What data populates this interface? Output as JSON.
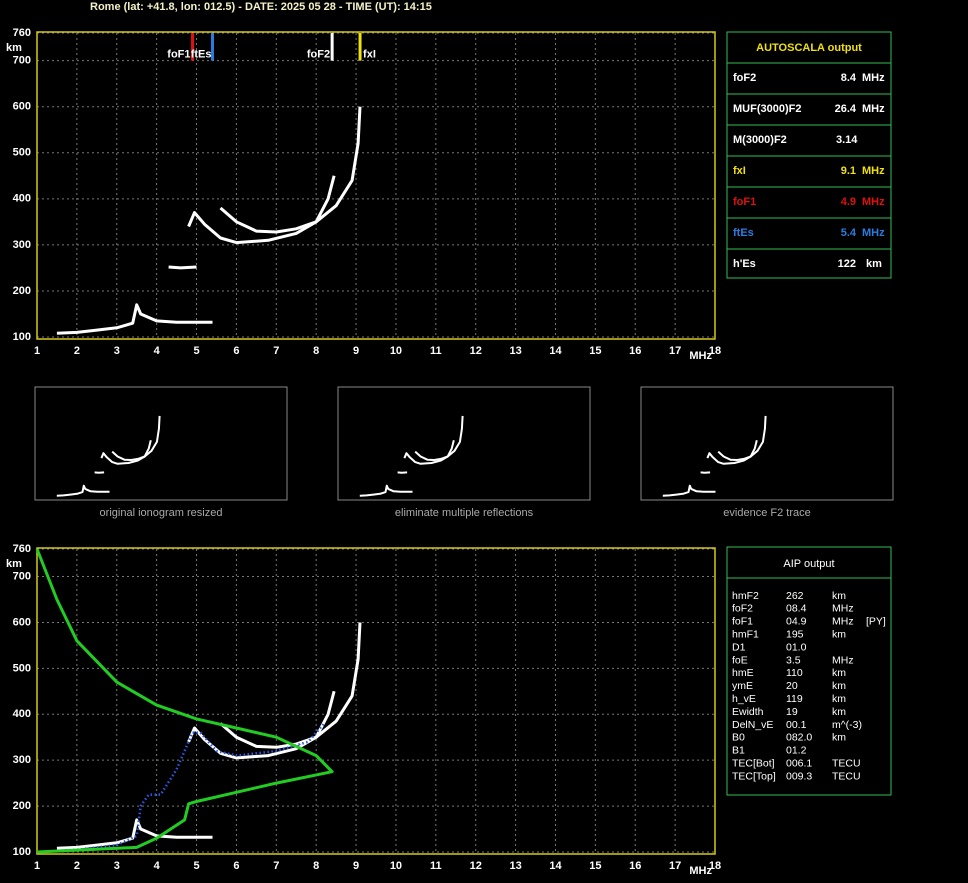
{
  "header": {
    "title": "Rome (lat: +41.8, lon: 012.5) - DATE: 2025 05 28 - TIME (UT): 14:15"
  },
  "chart_data": [
    {
      "type": "line",
      "xlim": [
        1,
        18
      ],
      "ylim": [
        100,
        760
      ],
      "xticks": [
        1,
        2,
        3,
        4,
        5,
        6,
        7,
        8,
        9,
        10,
        11,
        12,
        13,
        14,
        15,
        16,
        17,
        18
      ],
      "yticks": [
        100,
        200,
        300,
        400,
        500,
        600,
        700,
        760
      ],
      "xlabel": "MHz",
      "ylabel": "km",
      "grid": true,
      "frame_color": "#d8c81c",
      "markers": [
        {
          "label": "foF1",
          "value": 4.9,
          "color": "#e01010",
          "label_side": "left"
        },
        {
          "label": "ftEs",
          "value": 5.4,
          "color": "#2a7de0",
          "label_side": "left-of-next"
        },
        {
          "label": "foF2",
          "value": 8.4,
          "color": "#ffffff",
          "label_side": "left"
        },
        {
          "label": "fxI",
          "value": 9.1,
          "color": "#f0e010",
          "label_side": "right"
        }
      ],
      "series": [
        {
          "color": "#ffffff",
          "x": [
            4.8,
            4.95,
            5.2,
            5.6,
            6,
            6.8,
            7.5,
            8,
            8.3,
            8.45
          ],
          "values": [
            340,
            370,
            345,
            315,
            305,
            310,
            325,
            350,
            400,
            450
          ]
        },
        {
          "color": "#ffffff",
          "x": [
            5.6,
            6,
            6.5,
            7,
            7.5,
            8,
            8.5,
            8.9,
            9.05,
            9.1
          ],
          "values": [
            380,
            350,
            330,
            328,
            335,
            350,
            385,
            440,
            520,
            600
          ]
        },
        {
          "color": "#ffffff",
          "x": [
            1.5,
            2,
            2.5,
            3,
            3.4,
            3.5,
            3.6,
            4,
            4.5,
            5.4
          ],
          "values": [
            108,
            110,
            115,
            120,
            130,
            170,
            150,
            135,
            132,
            132
          ]
        },
        {
          "color": "#ffffff",
          "x": [
            4.3,
            4.6,
            5
          ],
          "values": [
            252,
            250,
            252
          ]
        }
      ]
    },
    {
      "type": "line",
      "xlim": [
        1,
        18
      ],
      "ylim": [
        100,
        760
      ],
      "xticks": [
        1,
        2,
        3,
        4,
        5,
        6,
        7,
        8,
        9,
        10,
        11,
        12,
        13,
        14,
        15,
        16,
        17,
        18
      ],
      "yticks": [
        100,
        200,
        300,
        400,
        500,
        600,
        700,
        760
      ],
      "xlabel": "MHz",
      "ylabel": "km",
      "grid": true,
      "frame_color": "#d8c81c",
      "series": [
        {
          "color": "#ffffff",
          "x": [
            4.8,
            4.95,
            5.2,
            5.6,
            6,
            6.8,
            7.5,
            8,
            8.3,
            8.45
          ],
          "values": [
            340,
            370,
            345,
            315,
            305,
            310,
            325,
            350,
            400,
            450
          ]
        },
        {
          "color": "#ffffff",
          "x": [
            5.6,
            6,
            6.5,
            7,
            7.5,
            8,
            8.5,
            8.9,
            9.05,
            9.1
          ],
          "values": [
            380,
            350,
            330,
            328,
            335,
            350,
            385,
            440,
            520,
            600
          ]
        },
        {
          "color": "#ffffff",
          "x": [
            1.5,
            2,
            2.5,
            3,
            3.4,
            3.5,
            3.6,
            4,
            4.5,
            5.4
          ],
          "values": [
            108,
            110,
            115,
            120,
            130,
            170,
            150,
            135,
            132,
            132
          ]
        },
        {
          "color": "#2a5be8",
          "style": "dotted",
          "x": [
            1,
            2,
            3,
            3.5,
            3.6,
            3.8,
            4.1,
            4.5,
            4.9,
            5.1,
            5.5,
            6,
            7,
            7.8,
            8.2
          ],
          "values": [
            100,
            105,
            115,
            135,
            200,
            225,
            225,
            280,
            360,
            360,
            320,
            310,
            320,
            340,
            380
          ]
        },
        {
          "color": "#22cc22",
          "x": [
            1,
            1.5,
            2,
            3,
            4,
            5,
            6,
            7,
            8,
            8.4,
            7,
            6,
            5,
            4.8,
            4.7,
            4,
            3.5,
            1
          ],
          "values": [
            760,
            650,
            560,
            470,
            420,
            390,
            370,
            350,
            310,
            275,
            250,
            230,
            210,
            205,
            170,
            130,
            110,
            100
          ]
        }
      ]
    }
  ],
  "autoscala": {
    "title": "AUTOSCALA output",
    "rows": [
      {
        "label": "foF2",
        "value": "8.4",
        "unit": "MHz",
        "color": "#ffffff"
      },
      {
        "label": "MUF(3000)F2",
        "value": "26.4",
        "unit": "MHz",
        "color": "#ffffff"
      },
      {
        "label": "M(3000)F2",
        "value": "3.14",
        "color": "#ffffff"
      },
      {
        "label": "fxI",
        "value": "9.1",
        "unit": "MHz",
        "color": "#f0e010"
      },
      {
        "label": "foF1",
        "value": "4.9",
        "unit": "MHz",
        "color": "#e01010"
      },
      {
        "label": "ftEs",
        "value": "5.4",
        "unit": "MHz",
        "color": "#2a7de0"
      },
      {
        "label": "h'Es",
        "value": "122",
        "unit": "km",
        "color": "#ffffff"
      }
    ]
  },
  "thumbnails": [
    "original ionogram resized",
    "eliminate multiple reflections",
    "evidence F2 trace"
  ],
  "aip": {
    "title": "AIP output",
    "rows": [
      [
        "hmF2",
        "262",
        "km"
      ],
      [
        "foF2",
        "08.4",
        "MHz"
      ],
      [
        "foF1",
        "04.9",
        "MHz",
        "[PY]"
      ],
      [
        "hmF1",
        "195",
        "km"
      ],
      [
        "D1",
        "01.0"
      ],
      [
        "foE",
        "3.5",
        "MHz"
      ],
      [
        "hmE",
        "110",
        "km"
      ],
      [
        "ymE",
        "20",
        "km"
      ],
      [
        "h_vE",
        "119",
        "km"
      ],
      [
        "Ewidth",
        "19",
        "km"
      ],
      [
        "DelN_vE",
        "00.1",
        "m^(-3)"
      ],
      [
        "B0",
        "082.0",
        "km"
      ],
      [
        "B1",
        "01.2"
      ],
      [
        "TEC[Bot]",
        "006.1",
        "TECU"
      ],
      [
        "TEC[Top]",
        "009.3",
        "TECU"
      ]
    ]
  }
}
